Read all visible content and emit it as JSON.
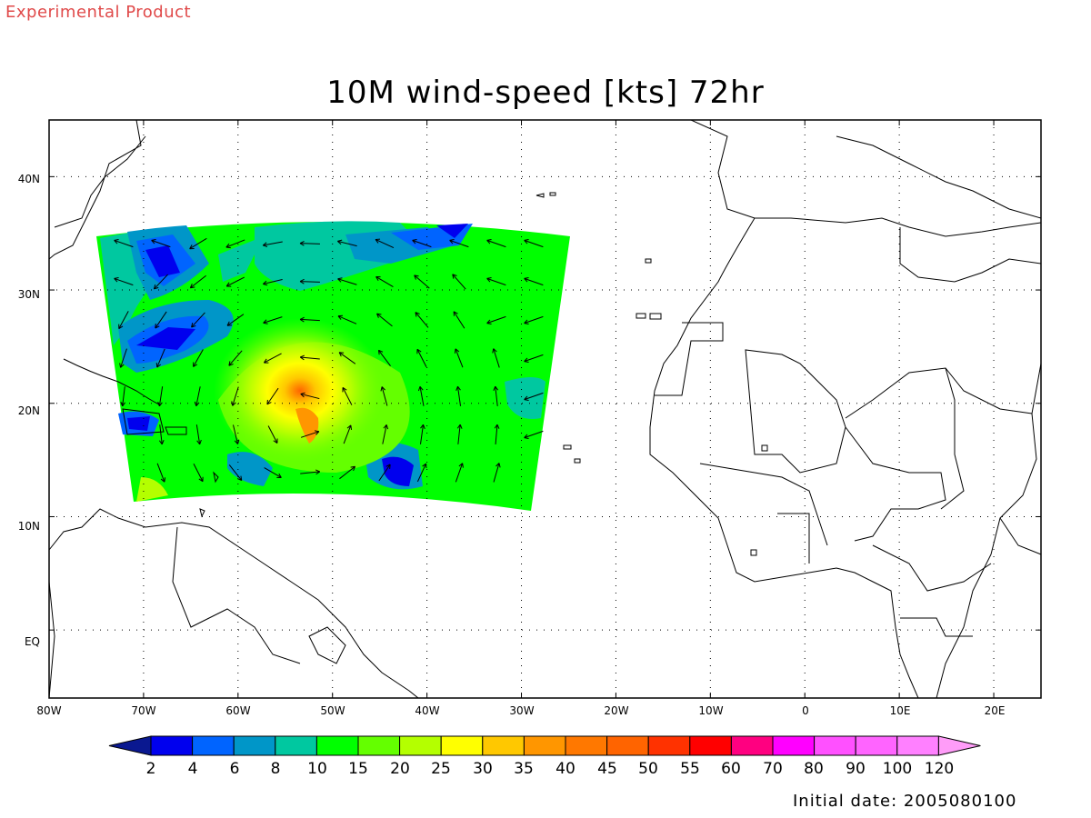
{
  "header": {
    "experimental_label": "Experimental Product",
    "title": "10M wind-speed [kts] 72hr"
  },
  "footer": {
    "initial_date_text": "Initial date: 2005080100"
  },
  "map": {
    "lon_range": [
      -80,
      25
    ],
    "lat_range": [
      -6,
      45
    ],
    "lon_ticks": [
      "80W",
      "70W",
      "60W",
      "50W",
      "40W",
      "30W",
      "20W",
      "10W",
      "0",
      "10E",
      "20E"
    ],
    "lat_ticks": [
      "EQ",
      "10N",
      "20N",
      "30N",
      "40N"
    ],
    "gridlines": true
  },
  "colorbar": {
    "labels": [
      "2",
      "4",
      "6",
      "8",
      "10",
      "15",
      "20",
      "25",
      "30",
      "35",
      "40",
      "45",
      "50",
      "55",
      "60",
      "70",
      "80",
      "90",
      "100",
      "120"
    ],
    "colors": [
      "#0a1890",
      "#0000ee",
      "#0064ff",
      "#0096c8",
      "#00c8a0",
      "#00ff00",
      "#64ff00",
      "#b4ff00",
      "#ffff00",
      "#ffc800",
      "#ff9600",
      "#ff7800",
      "#ff6400",
      "#ff3200",
      "#ff0000",
      "#ff0080",
      "#ff00ff",
      "#ff50ff",
      "#ff64ff",
      "#ff80ff",
      "#ff9cf8"
    ]
  },
  "legend_items": [
    "under-2",
    "2-4",
    "4-6",
    "6-8",
    "8-10",
    "10-15",
    "15-20",
    "20-25",
    "25-30",
    "30-35",
    "35-40",
    "40-45",
    "45-50",
    "50-55",
    "55-60",
    "60-70",
    "70-80",
    "80-90",
    "90-100",
    "100-120",
    "over-120"
  ]
}
